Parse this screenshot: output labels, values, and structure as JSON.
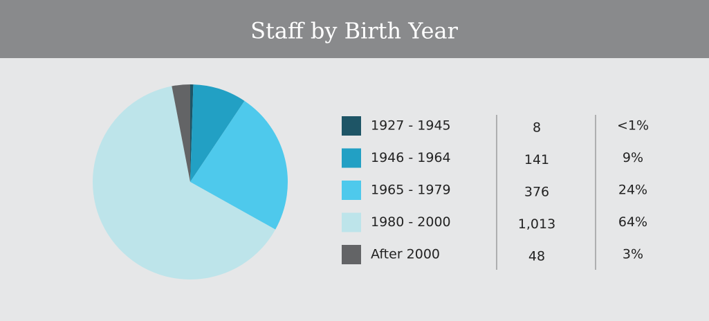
{
  "chart_data": {
    "type": "pie",
    "title": "Staff by Birth Year",
    "categories": [
      "1927 - 1945",
      "1946 - 1964",
      "1965 - 1979",
      "1980 - 2000",
      "After 2000"
    ],
    "values": [
      8,
      141,
      376,
      1013,
      48
    ],
    "value_labels": [
      "8",
      "141",
      "376",
      "1,013",
      "48"
    ],
    "percent_labels": [
      "<1%",
      "9%",
      "24%",
      "64%",
      "3%"
    ],
    "colors": [
      "#1e5566",
      "#22a0c4",
      "#4ec9ec",
      "#bde4ea",
      "#636466"
    ]
  }
}
